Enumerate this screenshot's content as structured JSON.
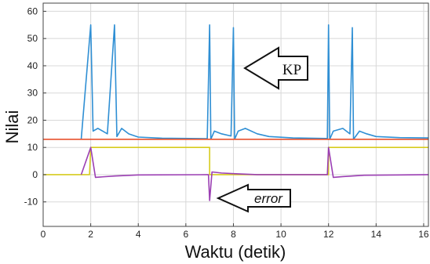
{
  "chart_data": {
    "type": "line",
    "xlabel": "Waktu (detik)",
    "ylabel": "Nilai",
    "xlim": [
      0,
      16.2
    ],
    "ylim": [
      -19,
      63
    ],
    "x_ticks": [
      0,
      2,
      4,
      6,
      8,
      10,
      12,
      14,
      16
    ],
    "y_ticks": [
      -10,
      0,
      10,
      20,
      30,
      40,
      50,
      60
    ],
    "grid": true,
    "annotations": [
      {
        "text": "KP",
        "arrow": "left"
      },
      {
        "text": "error",
        "arrow": "left"
      }
    ],
    "series": [
      {
        "color": "#2f8fd4",
        "points": [
          [
            1.6,
            13
          ],
          [
            2.0,
            55
          ],
          [
            2.1,
            16
          ],
          [
            2.3,
            17
          ],
          [
            2.5,
            16
          ],
          [
            2.7,
            15
          ],
          [
            3.0,
            55
          ],
          [
            3.1,
            14
          ],
          [
            3.3,
            17
          ],
          [
            3.6,
            15
          ],
          [
            4.0,
            13.8
          ],
          [
            5.0,
            13.4
          ],
          [
            6.9,
            13.2
          ],
          [
            7.0,
            55
          ],
          [
            7.05,
            13
          ],
          [
            7.2,
            16
          ],
          [
            7.5,
            15
          ],
          [
            7.9,
            14.2
          ],
          [
            8.0,
            54
          ],
          [
            8.05,
            13
          ],
          [
            8.2,
            16
          ],
          [
            8.5,
            17
          ],
          [
            9.0,
            15
          ],
          [
            9.5,
            14
          ],
          [
            10.5,
            13.5
          ],
          [
            11.95,
            13.3
          ],
          [
            12.0,
            55
          ],
          [
            12.05,
            13
          ],
          [
            12.2,
            16
          ],
          [
            12.6,
            17
          ],
          [
            12.9,
            15
          ],
          [
            13.0,
            54
          ],
          [
            13.05,
            13
          ],
          [
            13.3,
            16
          ],
          [
            13.6,
            15
          ],
          [
            14.0,
            14
          ],
          [
            15.0,
            13.6
          ],
          [
            16.2,
            13.5
          ]
        ]
      },
      {
        "color": "#e8502d",
        "points": [
          [
            0,
            13
          ],
          [
            16.2,
            13
          ]
        ]
      },
      {
        "color": "#d6cc1e",
        "points": [
          [
            0,
            0
          ],
          [
            1.95,
            0
          ],
          [
            2.0,
            10
          ],
          [
            7.0,
            10
          ],
          [
            7.0,
            0
          ],
          [
            12.0,
            0
          ],
          [
            12.0,
            10
          ],
          [
            16.2,
            10
          ]
        ]
      },
      {
        "color": "#9b3fb3",
        "points": [
          [
            1.6,
            0
          ],
          [
            2.0,
            10
          ],
          [
            2.2,
            -1
          ],
          [
            2.5,
            -0.8
          ],
          [
            3.0,
            -0.5
          ],
          [
            4.0,
            -0.1
          ],
          [
            6.95,
            0
          ],
          [
            7.0,
            -9.5
          ],
          [
            7.1,
            1
          ],
          [
            7.5,
            0.6
          ],
          [
            8.2,
            0.3
          ],
          [
            9.0,
            0
          ],
          [
            11.95,
            0
          ],
          [
            12.0,
            10
          ],
          [
            12.2,
            -1
          ],
          [
            12.6,
            -0.7
          ],
          [
            13.5,
            -0.2
          ],
          [
            16.2,
            0
          ]
        ]
      }
    ]
  }
}
